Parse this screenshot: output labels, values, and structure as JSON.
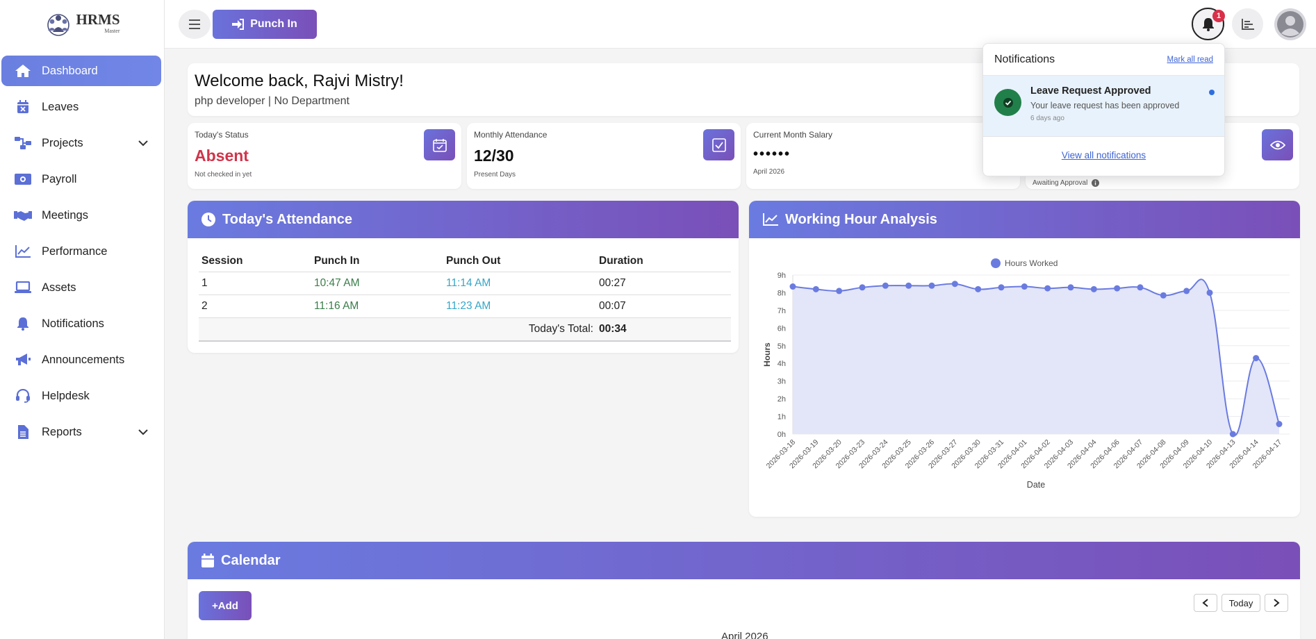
{
  "brand": {
    "name": "HRMS",
    "sub": "Master"
  },
  "topbar": {
    "punch_label": "Punch In",
    "notification_count": "1"
  },
  "sidebar": {
    "items": [
      {
        "label": "Dashboard",
        "icon": "home-icon"
      },
      {
        "label": "Leaves",
        "icon": "calendar-x-icon"
      },
      {
        "label": "Projects",
        "icon": "project-diagram-icon",
        "expandable": true
      },
      {
        "label": "Payroll",
        "icon": "money-icon"
      },
      {
        "label": "Meetings",
        "icon": "handshake-icon"
      },
      {
        "label": "Performance",
        "icon": "line-chart-icon"
      },
      {
        "label": "Assets",
        "icon": "laptop-icon"
      },
      {
        "label": "Notifications",
        "icon": "bell-icon"
      },
      {
        "label": "Announcements",
        "icon": "megaphone-icon"
      },
      {
        "label": "Helpdesk",
        "icon": "headset-icon"
      },
      {
        "label": "Reports",
        "icon": "file-icon",
        "expandable": true
      }
    ]
  },
  "welcome": {
    "title": "Welcome back, Rajvi Mistry!",
    "subtitle": "php developer | No Department"
  },
  "stats": {
    "status": {
      "label": "Today's Status",
      "value": "Absent",
      "sub": "Not checked in yet"
    },
    "attendance": {
      "label": "Monthly Attendance",
      "value": "12/30",
      "sub": "Present Days"
    },
    "salary": {
      "label": "Current Month Salary",
      "value": "••••••",
      "sub": "April 2026"
    },
    "leave": {
      "sub": "Awaiting Approval"
    }
  },
  "attendance": {
    "title": "Today's Attendance",
    "headers": [
      "Session",
      "Punch In",
      "Punch Out",
      "Duration"
    ],
    "rows": [
      {
        "session": "1",
        "in": "10:47 AM",
        "out": "11:14 AM",
        "duration": "00:27"
      },
      {
        "session": "2",
        "in": "11:16 AM",
        "out": "11:23 AM",
        "duration": "00:07"
      }
    ],
    "total_label": "Today's Total:",
    "total_value": "00:34"
  },
  "working_hours": {
    "title": "Working Hour Analysis"
  },
  "chart_data": {
    "type": "area",
    "title": "",
    "xlabel": "Date",
    "ylabel": "Hours",
    "ylim": [
      0,
      9
    ],
    "y_ticks": [
      "0h",
      "1h",
      "2h",
      "3h",
      "4h",
      "5h",
      "6h",
      "7h",
      "8h",
      "9h"
    ],
    "grid": true,
    "legend": "top-center",
    "categories": [
      "2026-03-18",
      "2026-03-19",
      "2026-03-20",
      "2026-03-23",
      "2026-03-24",
      "2026-03-25",
      "2026-03-26",
      "2026-03-27",
      "2026-03-30",
      "2026-03-31",
      "2026-04-01",
      "2026-04-02",
      "2026-04-03",
      "2026-04-04",
      "2026-04-06",
      "2026-04-07",
      "2026-04-08",
      "2026-04-09",
      "2026-04-10",
      "2026-04-13",
      "2026-04-14",
      "2026-04-17"
    ],
    "series": [
      {
        "name": "Hours Worked",
        "color": "#6a7be0",
        "fill": "#e3e5f9",
        "values": [
          8.35,
          8.2,
          8.1,
          8.3,
          8.4,
          8.4,
          8.4,
          8.5,
          8.2,
          8.3,
          8.35,
          8.25,
          8.3,
          8.2,
          8.25,
          8.3,
          7.85,
          8.1,
          8.0,
          0.0,
          4.3,
          0.57
        ]
      }
    ]
  },
  "calendar": {
    "title": "Calendar",
    "add_label": "+Add",
    "today_label": "Today",
    "month_label": "April 2026"
  },
  "notifications": {
    "title": "Notifications",
    "mark_all": "Mark all read",
    "items": [
      {
        "title": "Leave Request Approved",
        "desc": "Your leave request has been approved",
        "time": "6 days ago"
      }
    ],
    "view_all": "View all notifications"
  }
}
